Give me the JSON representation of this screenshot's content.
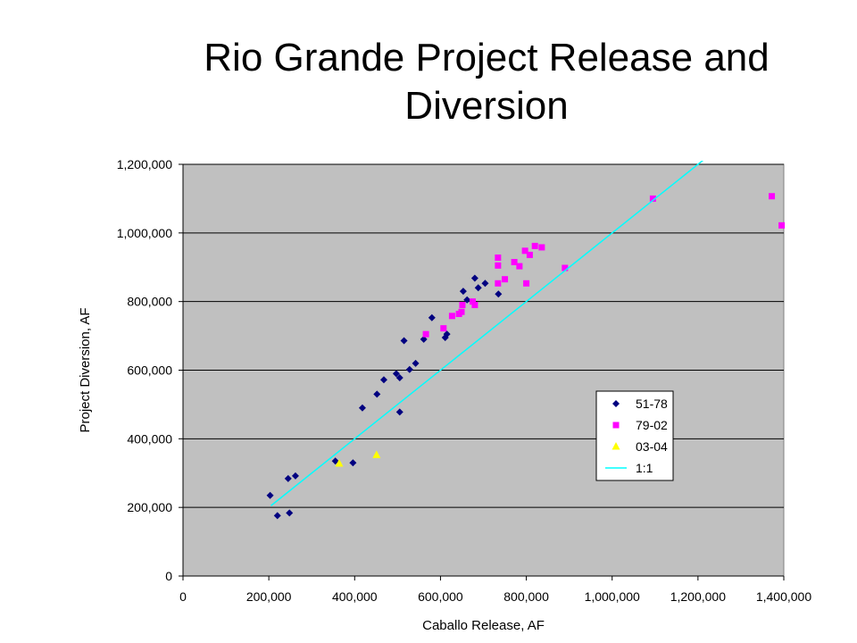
{
  "slide": {
    "title_line1": "Rio Grande Project Release and",
    "title_line2": "Diversion"
  },
  "chart_data": {
    "type": "scatter",
    "title": "Rio Grande Project Release and Diversion",
    "xlabel": "Caballo Release, AF",
    "ylabel": "Project Diversion, AF",
    "xlim": [
      0,
      1400000
    ],
    "ylim": [
      0,
      1200000
    ],
    "x_ticks": [
      0,
      200000,
      400000,
      600000,
      800000,
      1000000,
      1200000,
      1400000
    ],
    "x_tick_labels": [
      "0",
      "200,000",
      "400,000",
      "600,000",
      "800,000",
      "1,000,000",
      "1,200,000",
      "1,400,000"
    ],
    "y_ticks": [
      0,
      200000,
      400000,
      600000,
      800000,
      1000000,
      1200000
    ],
    "y_tick_labels": [
      "0",
      "200,000",
      "400,000",
      "600,000",
      "800,000",
      "1,000,000",
      "1,200,000"
    ],
    "grid": "horizontal",
    "plot_background": "#c0c0c0",
    "legend_position": "right",
    "series": [
      {
        "name": "51-78",
        "marker": "diamond",
        "color": "#000080",
        "points": [
          [
            203000,
            235000
          ],
          [
            220000,
            176000
          ],
          [
            245000,
            284000
          ],
          [
            248000,
            184000
          ],
          [
            262000,
            292000
          ],
          [
            355000,
            335000
          ],
          [
            396000,
            330000
          ],
          [
            418000,
            490000
          ],
          [
            452000,
            530000
          ],
          [
            468000,
            572000
          ],
          [
            497000,
            590000
          ],
          [
            505000,
            478000
          ],
          [
            505000,
            578000
          ],
          [
            515000,
            686000
          ],
          [
            528000,
            602000
          ],
          [
            542000,
            620000
          ],
          [
            561000,
            690000
          ],
          [
            580000,
            753000
          ],
          [
            611000,
            695000
          ],
          [
            615000,
            705000
          ],
          [
            653000,
            830000
          ],
          [
            662000,
            805000
          ],
          [
            680000,
            868000
          ],
          [
            688000,
            840000
          ],
          [
            704000,
            853000
          ],
          [
            735000,
            822000
          ]
        ]
      },
      {
        "name": "79-02",
        "marker": "square",
        "color": "#ff00ff",
        "points": [
          [
            566000,
            705000
          ],
          [
            607000,
            722000
          ],
          [
            627000,
            758000
          ],
          [
            643000,
            764000
          ],
          [
            649000,
            770000
          ],
          [
            651000,
            790000
          ],
          [
            675000,
            800000
          ],
          [
            680000,
            790000
          ],
          [
            734000,
            928000
          ],
          [
            734000,
            905000
          ],
          [
            734000,
            853000
          ],
          [
            750000,
            865000
          ],
          [
            772000,
            915000
          ],
          [
            784000,
            903000
          ],
          [
            797000,
            948000
          ],
          [
            800000,
            853000
          ],
          [
            808000,
            936000
          ],
          [
            820000,
            962000
          ],
          [
            836000,
            958000
          ],
          [
            890000,
            898000
          ],
          [
            1095000,
            1100000
          ],
          [
            1372000,
            1107000
          ],
          [
            1395000,
            1022000
          ]
        ]
      },
      {
        "name": "03-04",
        "marker": "triangle",
        "color": "#ffff00",
        "points": [
          [
            364000,
            328000
          ],
          [
            451000,
            353000
          ]
        ]
      },
      {
        "name": "1:1",
        "marker": "line",
        "color": "#00ffff",
        "points": [
          [
            205000,
            205000
          ],
          [
            1212000,
            1212000
          ]
        ]
      }
    ]
  }
}
